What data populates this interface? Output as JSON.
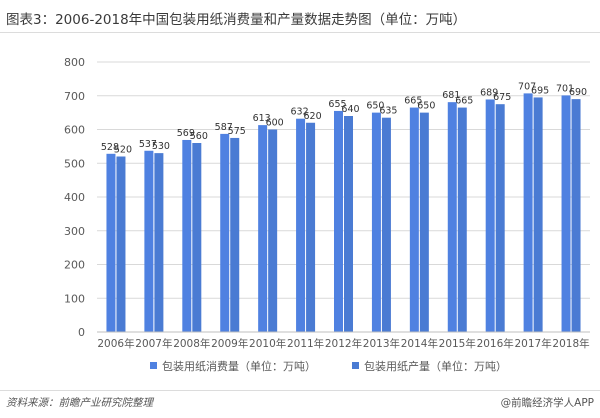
{
  "header": {
    "title": "图表3：2006-2018年中国包装用纸消费量和产量数据走势图（单位：万吨）"
  },
  "footer": {
    "source": "资料来源：前瞻产业研究院整理",
    "brand": "@前瞻经济学人APP"
  },
  "colors": {
    "consumption": "#4F81E1",
    "production": "#4A7BD3",
    "axis_text": "#595959",
    "grid": "#d9d9d9"
  },
  "chart_data": {
    "type": "bar",
    "title": "图表3：2006-2018年中国包装用纸消费量和产量数据走势图（单位：万吨）",
    "categories": [
      "2006年",
      "2007年",
      "2008年",
      "2009年",
      "2010年",
      "2011年",
      "2012年",
      "2013年",
      "2014年",
      "2015年",
      "2016年",
      "2017年",
      "2018年"
    ],
    "series": [
      {
        "name": "包装用纸消费量（单位：万吨）",
        "values": [
          528,
          537,
          569,
          587,
          613,
          632,
          655,
          650,
          665,
          681,
          689,
          707,
          701
        ]
      },
      {
        "name": "包装用纸产量（单位：万吨）",
        "values": [
          520,
          530,
          560,
          575,
          600,
          620,
          640,
          635,
          650,
          665,
          675,
          695,
          690
        ]
      }
    ],
    "ylim": [
      0,
      800
    ],
    "yticks": [
      0,
      100,
      200,
      300,
      400,
      500,
      600,
      700,
      800
    ],
    "grid": true,
    "legend_position": "bottom-center"
  }
}
